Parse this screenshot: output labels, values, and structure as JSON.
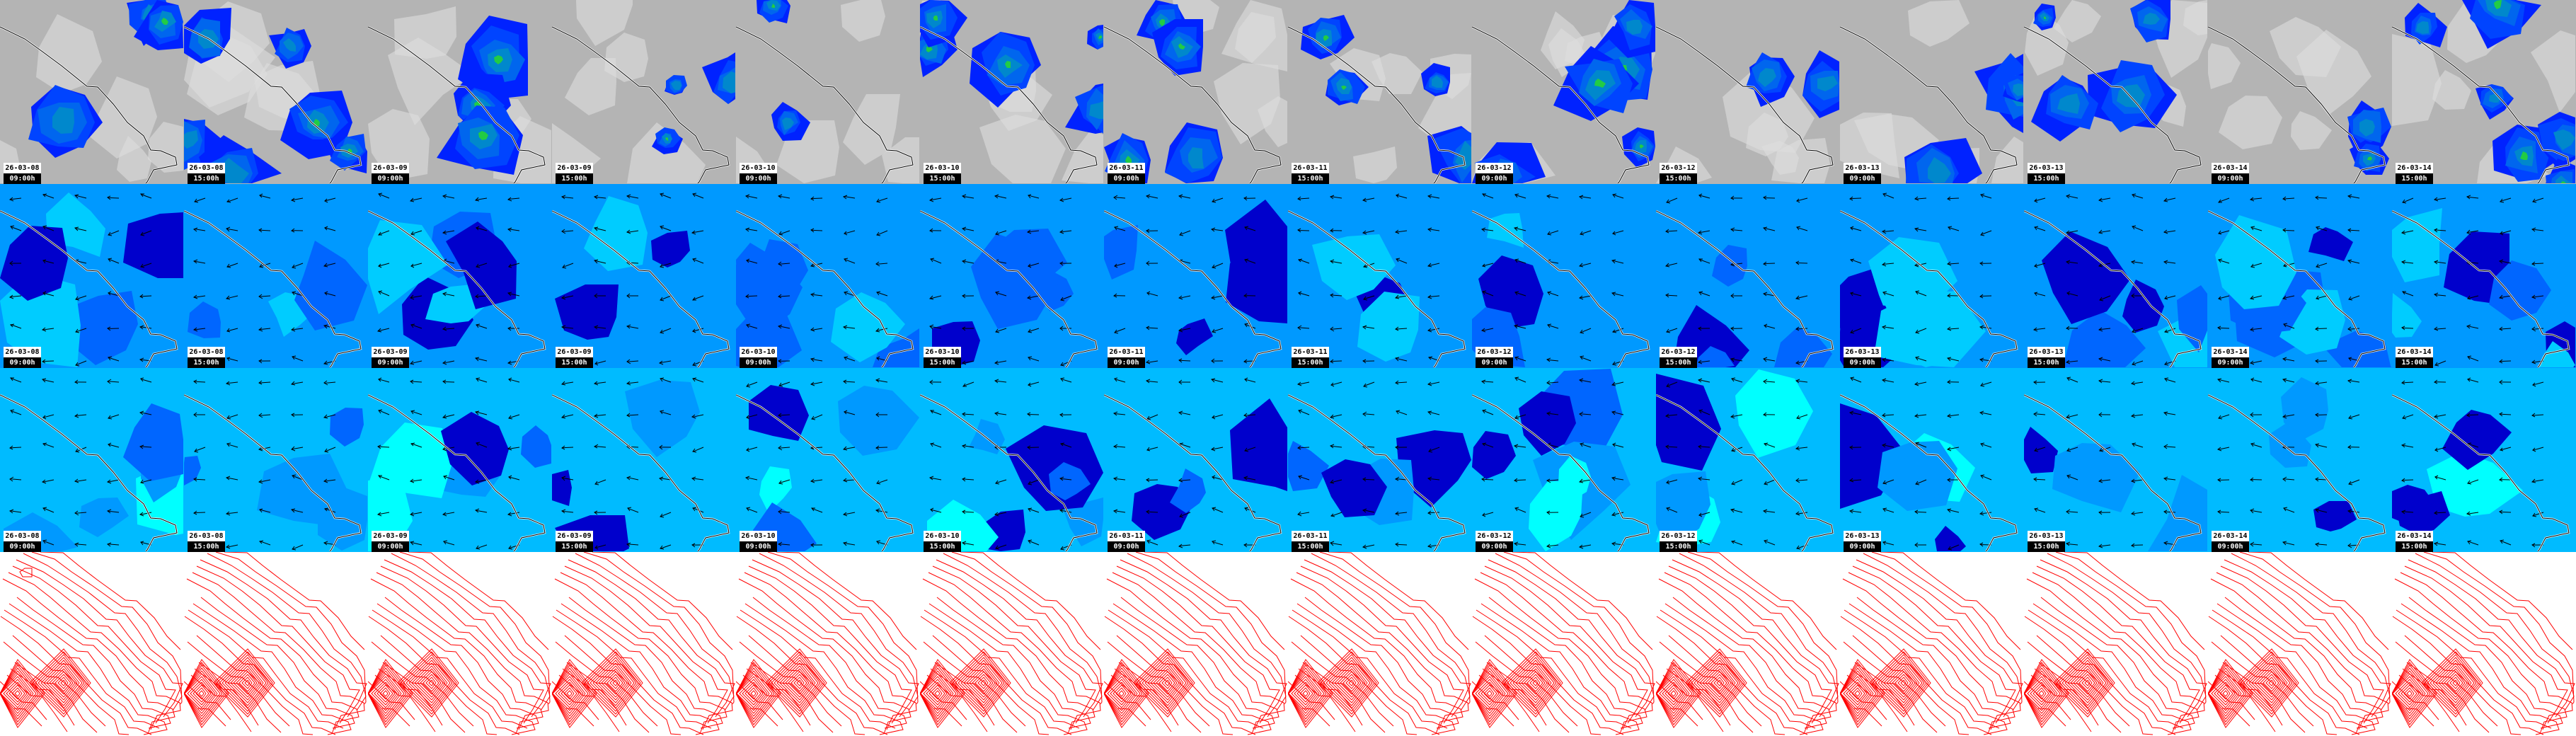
{
  "rows": [
    {
      "name": "precipitation",
      "background": "#b4b4b4",
      "colors": [
        "#0022ff",
        "#0044ff",
        "#0066ee",
        "#0088cc",
        "#22cc44"
      ],
      "labeled": true
    },
    {
      "name": "wind-low",
      "background": "#0099ff",
      "colors": [
        "#0066ff",
        "#0000cc",
        "#00ccff"
      ],
      "labeled": true
    },
    {
      "name": "wind-high",
      "background": "#00bbff",
      "colors": [
        "#0099ff",
        "#0066ff",
        "#0000cc",
        "#00ffff"
      ],
      "labeled": true
    },
    {
      "name": "pressure-contours",
      "background": "#ffffff",
      "colors": [
        "#ff0000"
      ],
      "labeled": false
    }
  ],
  "frames": [
    {
      "date": "26-03-08",
      "time": "09:00h"
    },
    {
      "date": "26-03-08",
      "time": "15:00h"
    },
    {
      "date": "26-03-09",
      "time": "09:00h"
    },
    {
      "date": "26-03-09",
      "time": "15:00h"
    },
    {
      "date": "26-03-10",
      "time": "09:00h"
    },
    {
      "date": "26-03-10",
      "time": "15:00h"
    },
    {
      "date": "26-03-11",
      "time": "09:00h"
    },
    {
      "date": "26-03-11",
      "time": "15:00h"
    },
    {
      "date": "26-03-12",
      "time": "09:00h"
    },
    {
      "date": "26-03-12",
      "time": "15:00h"
    },
    {
      "date": "26-03-13",
      "time": "09:00h"
    },
    {
      "date": "26-03-13",
      "time": "15:00h"
    },
    {
      "date": "26-03-14",
      "time": "09:00h"
    },
    {
      "date": "26-03-14",
      "time": "15:00h"
    }
  ],
  "coastline_color": "#000000"
}
